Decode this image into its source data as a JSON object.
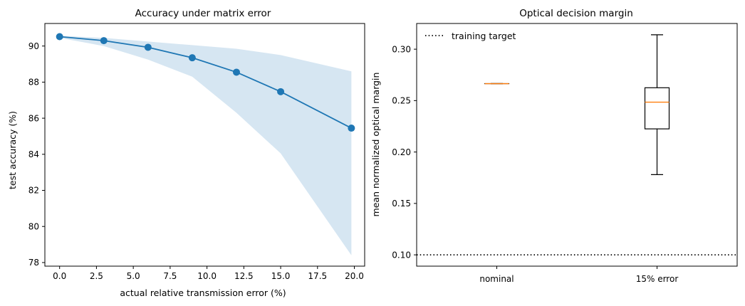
{
  "chart_data": [
    {
      "type": "line",
      "title": "Accuracy under matrix error",
      "xlabel": "actual relative transmission error (%)",
      "ylabel": "test accuracy (%)",
      "xlim": [
        -1.0,
        20.7
      ],
      "ylim": [
        77.8,
        91.25
      ],
      "xticks": [
        0.0,
        2.5,
        5.0,
        7.5,
        10.0,
        12.5,
        15.0,
        17.5,
        20.0
      ],
      "xtick_labels": [
        "0.0",
        "2.5",
        "5.0",
        "7.5",
        "10.0",
        "12.5",
        "15.0",
        "17.5",
        "20.0"
      ],
      "yticks": [
        78,
        80,
        82,
        84,
        86,
        88,
        90
      ],
      "ytick_labels": [
        "78",
        "80",
        "82",
        "84",
        "86",
        "88",
        "90"
      ],
      "grid": false,
      "series": [
        {
          "x": [
            0.0,
            3.0,
            6.0,
            9.0,
            12.0,
            15.0,
            19.8
          ],
          "y": [
            90.52,
            90.3,
            89.93,
            89.35,
            88.55,
            87.47,
            85.45
          ],
          "band_upper": [
            90.57,
            90.45,
            90.25,
            90.05,
            89.85,
            89.5,
            88.6
          ],
          "band_lower": [
            90.45,
            90.0,
            89.25,
            88.3,
            86.3,
            84.05,
            78.4
          ],
          "color": "#1f77b4",
          "band_color": "#d6e6f2"
        }
      ]
    },
    {
      "type": "box",
      "title": "Optical decision margin",
      "xlabel": "",
      "ylabel": "mean normalized optical margin",
      "ylim": [
        0.089,
        0.325
      ],
      "yticks": [
        0.1,
        0.15,
        0.2,
        0.25,
        0.3
      ],
      "ytick_labels": [
        "0.10",
        "0.15",
        "0.20",
        "0.25",
        "0.30"
      ],
      "categories": [
        "nominal",
        "15% error"
      ],
      "boxes": [
        {
          "min": 0.2665,
          "q1": 0.2665,
          "median": 0.2665,
          "q3": 0.2665,
          "max": 0.2665
        },
        {
          "min": 0.178,
          "q1": 0.2225,
          "median": 0.2485,
          "q3": 0.2625,
          "max": 0.314
        }
      ],
      "median_color": "#ff7f0e",
      "reference_line": {
        "y": 0.1,
        "label": "training target",
        "style": "dotted"
      },
      "legend": {
        "placement": "top-left",
        "entries": [
          "training target"
        ]
      },
      "grid": false
    }
  ]
}
